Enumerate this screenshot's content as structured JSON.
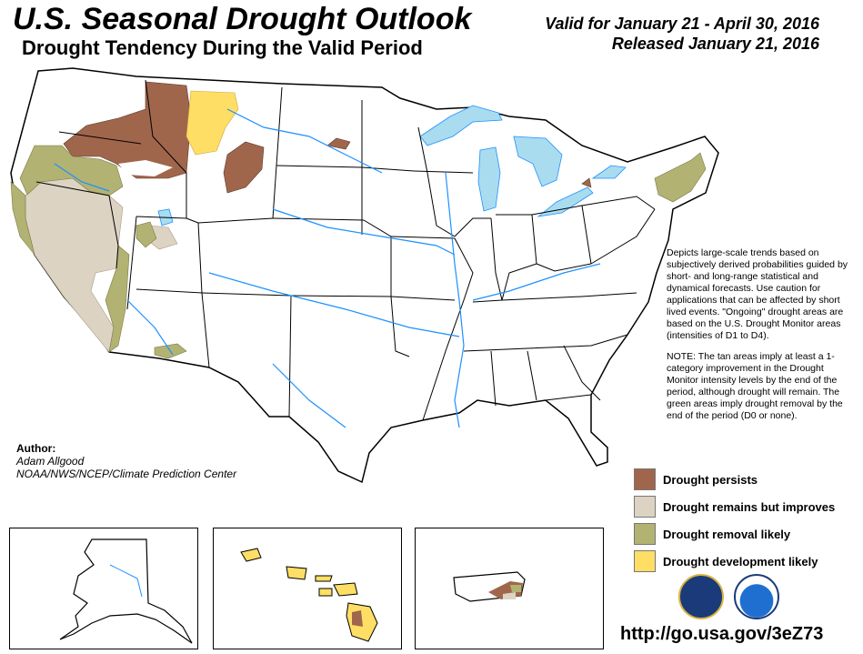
{
  "header": {
    "title": "U.S. Seasonal Drought Outlook",
    "subtitle": "Drought Tendency During the Valid Period",
    "valid": "Valid for January 21 - April 30, 2016",
    "released": "Released January 21, 2016"
  },
  "description": {
    "paragraph1": "Depicts large-scale trends based on subjectively derived probabilities guided by short- and long-range statistical and dynamical forecasts. Use caution for applications that can be affected by short lived events. \"Ongoing\" drought areas are based on the U.S. Drought Monitor areas (intensities of D1 to D4).",
    "paragraph2": "NOTE: The tan areas imply at least a 1-category improvement in the Drought Monitor intensity levels by the end of the period, although drought will remain. The green areas imply drought removal by the end of the period (D0 or none)."
  },
  "author": {
    "label": "Author:",
    "name": "Adam Allgood",
    "organization": "NOAA/NWS/NCEP/Climate Prediction Center"
  },
  "legend": [
    {
      "label": "Drought persists",
      "color": "#a0664c"
    },
    {
      "label": "Drought remains but improves",
      "color": "#ddd3c3"
    },
    {
      "label": "Drought removal likely",
      "color": "#b2b273"
    },
    {
      "label": "Drought development likely",
      "color": "#ffde66"
    }
  ],
  "colors": {
    "water": "#a9dcef",
    "rivers": "#1e90ff",
    "boundaries": "#000000"
  },
  "insets": [
    "alaska",
    "hawaii",
    "puerto-rico"
  ],
  "seals": [
    "department-of-commerce-seal",
    "noaa-logo"
  ],
  "url": "http://go.usa.gov/3eZ73"
}
